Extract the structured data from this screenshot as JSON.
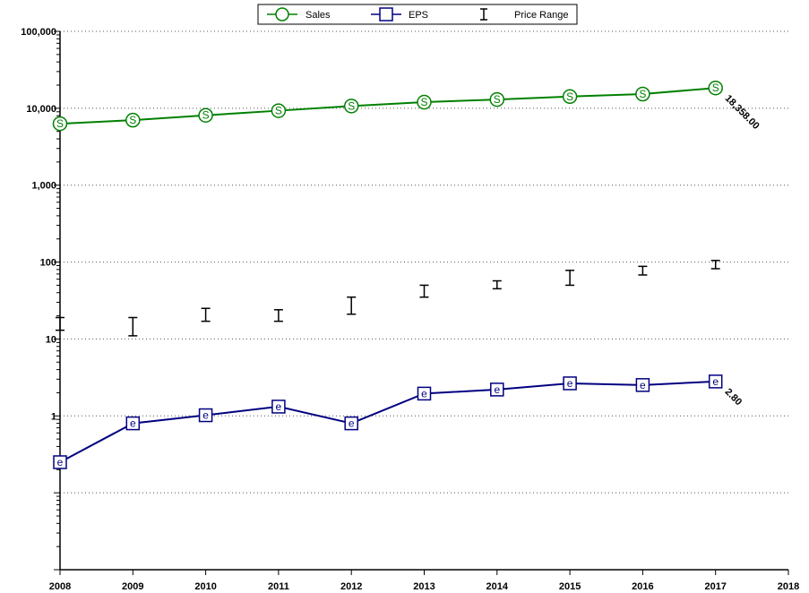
{
  "chart_data": {
    "type": "line",
    "y_scale": "log",
    "ylim": [
      0.01,
      100000
    ],
    "xlim": [
      2008,
      2018
    ],
    "grid": "horizontal-dotted",
    "legend_position": "top-center",
    "x_ticks": [
      "2008",
      "2009",
      "2010",
      "2011",
      "2012",
      "2013",
      "2014",
      "2015",
      "2016",
      "2017",
      "2018"
    ],
    "y_tick_labels": [
      {
        "value": 100000,
        "label": "100,000"
      },
      {
        "value": 10000,
        "label": "10,000"
      },
      {
        "value": 1000,
        "label": "1,000"
      },
      {
        "value": 100,
        "label": "100"
      },
      {
        "value": 10,
        "label": "10"
      },
      {
        "value": 1,
        "label": "1"
      }
    ],
    "legend": [
      {
        "name": "Sales",
        "color": "#008000",
        "symbol": "circle"
      },
      {
        "name": "EPS",
        "color": "#000080",
        "symbol": "square"
      },
      {
        "name": "Price Range",
        "color": "#000000",
        "symbol": "range-bar"
      }
    ],
    "series": [
      {
        "name": "Sales",
        "color": "#008000",
        "marker_text": "S",
        "x": [
          2008,
          2009,
          2010,
          2011,
          2012,
          2013,
          2014,
          2015,
          2016,
          2017
        ],
        "values": [
          6300,
          7000,
          8100,
          9300,
          10700,
          12000,
          13000,
          14200,
          15300,
          18358
        ],
        "end_label": "18,358.00"
      },
      {
        "name": "EPS",
        "color": "#000080",
        "marker_text": "e",
        "x": [
          2008,
          2009,
          2010,
          2011,
          2012,
          2013,
          2014,
          2015,
          2016,
          2017
        ],
        "values": [
          0.25,
          0.8,
          1.02,
          1.32,
          0.8,
          1.95,
          2.2,
          2.65,
          2.52,
          2.8
        ],
        "end_label": "2.80"
      }
    ],
    "price_range": {
      "color": "#000000",
      "x": [
        2008,
        2009,
        2010,
        2011,
        2012,
        2013,
        2014,
        2015,
        2016,
        2017
      ],
      "low": [
        13,
        11,
        17,
        17,
        21,
        35,
        45,
        50,
        68,
        82
      ],
      "high": [
        19,
        19,
        25,
        24,
        35,
        50,
        57,
        78,
        88,
        105
      ]
    }
  }
}
